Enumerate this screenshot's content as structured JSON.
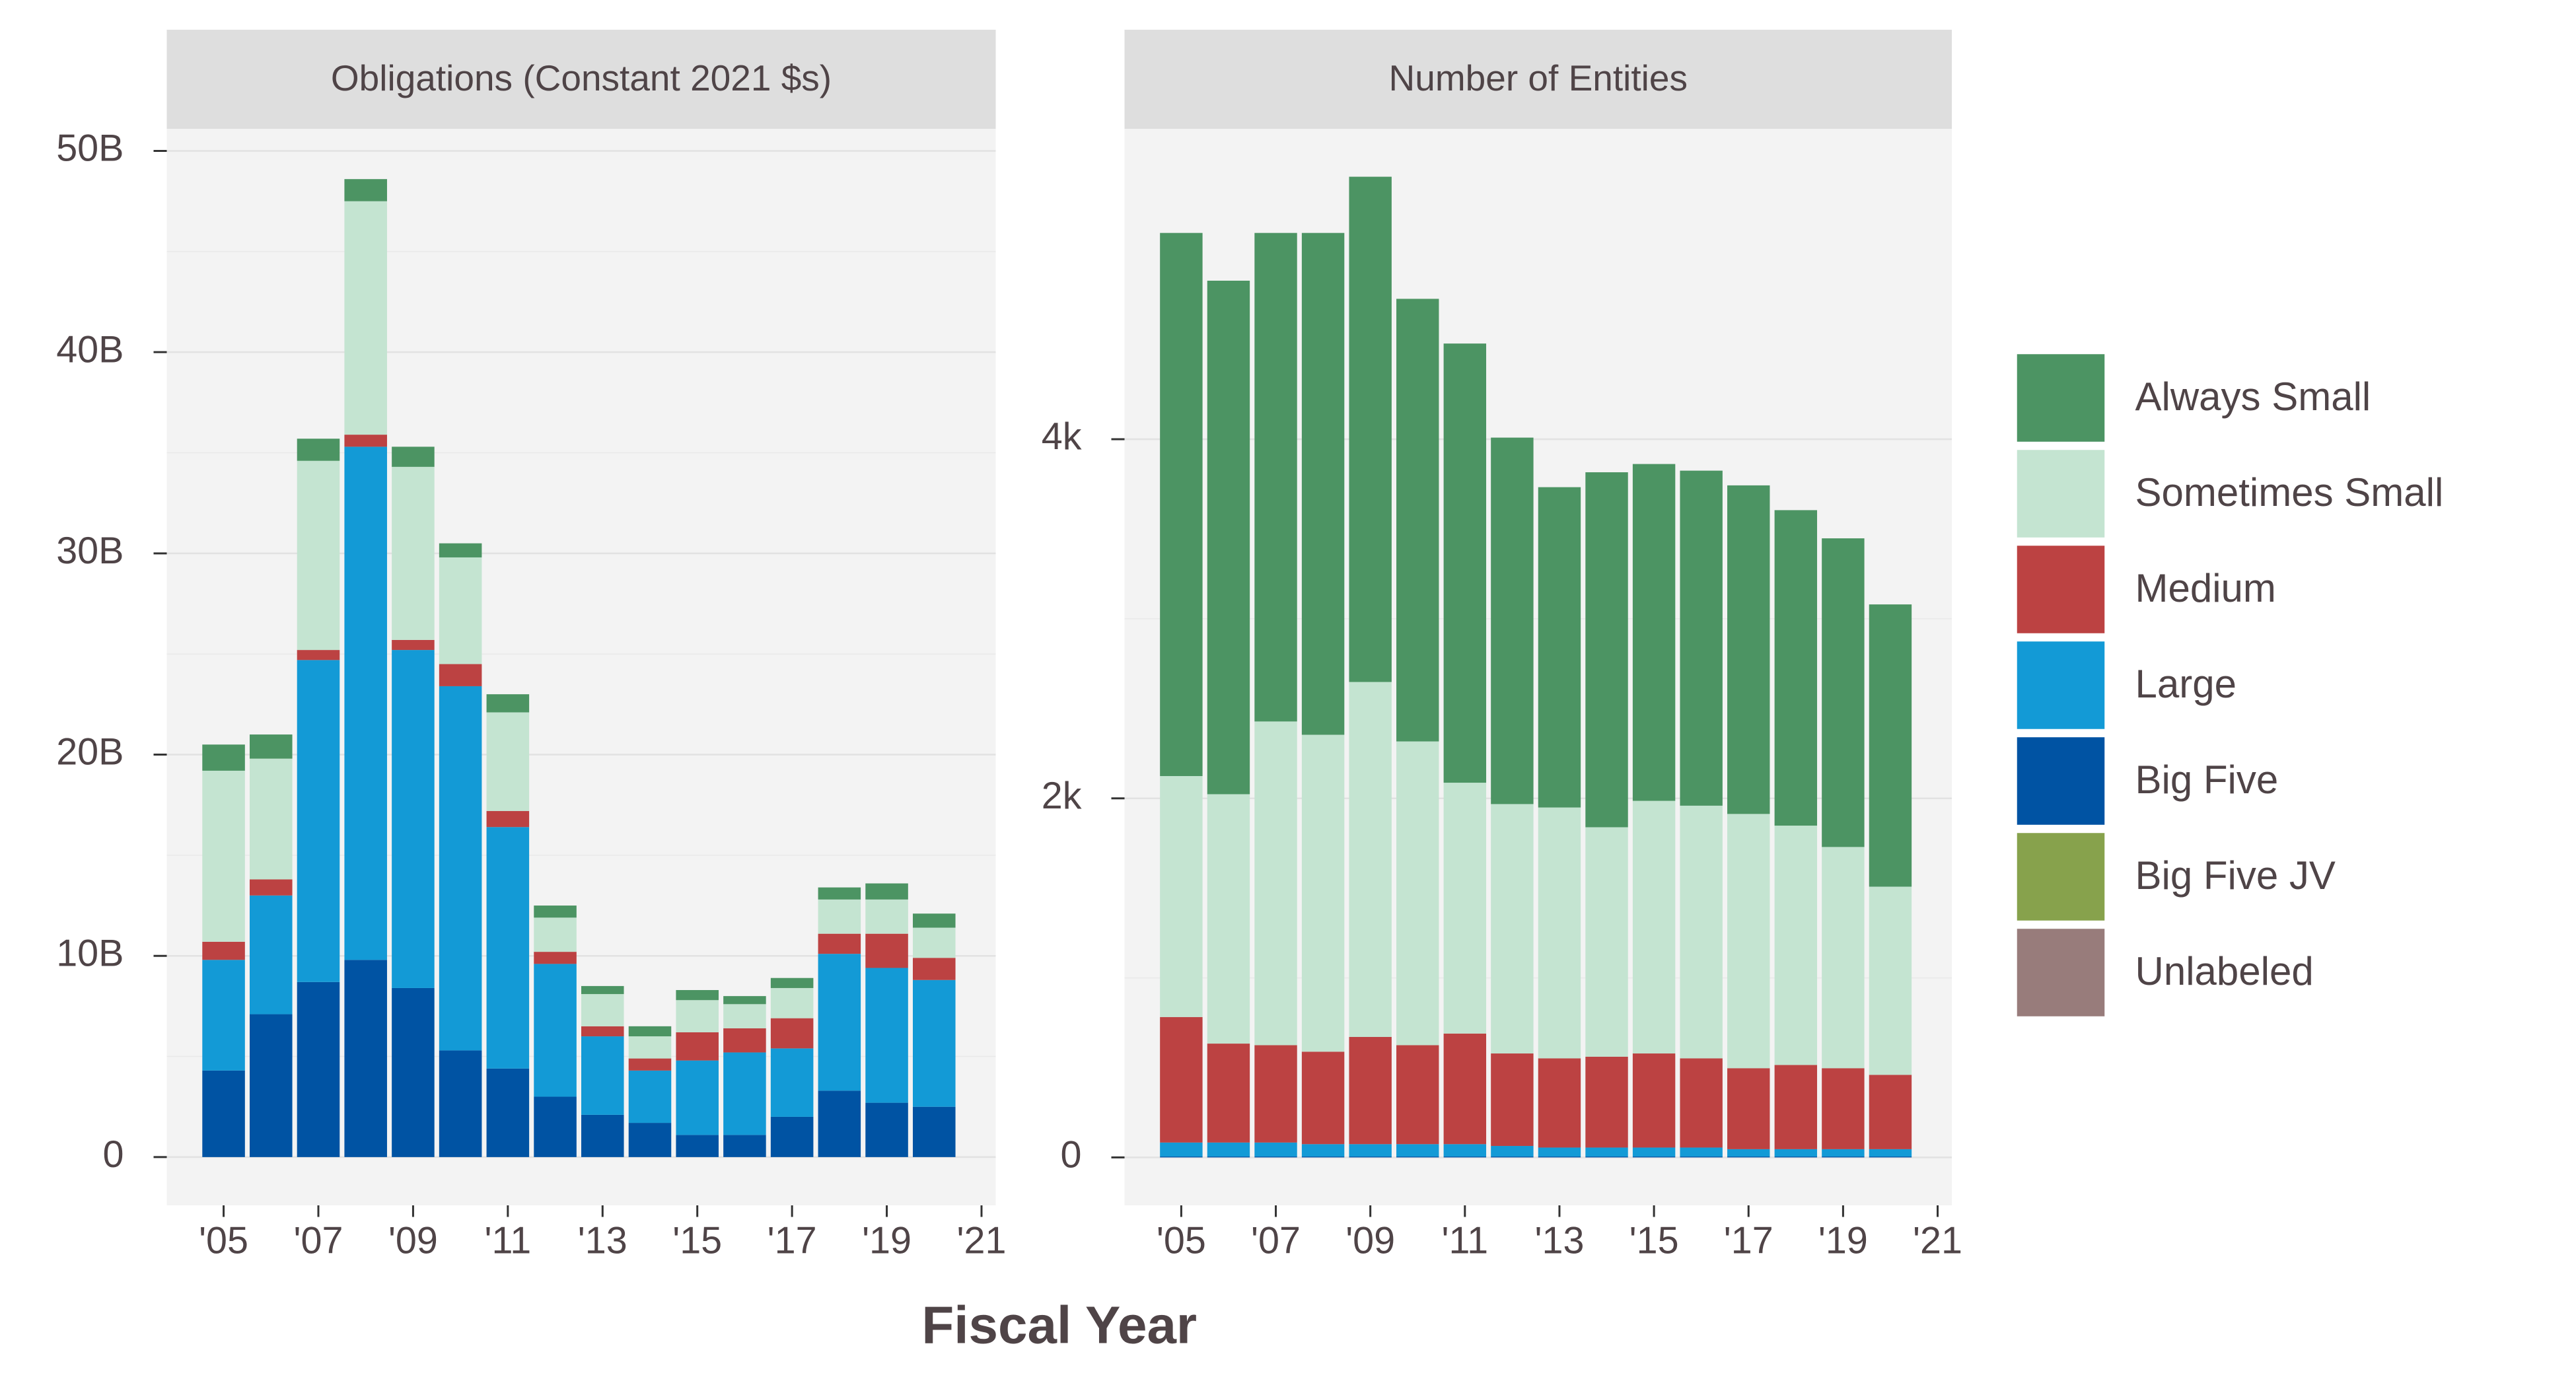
{
  "chart_data": [
    {
      "type": "stacked_bar",
      "title": "Obligations (Constant 2021 $s)",
      "xlabel": "Fiscal Year",
      "legend": "right",
      "grid": true,
      "x": [
        2005,
        2006,
        2007,
        2008,
        2009,
        2010,
        2011,
        2012,
        2013,
        2014,
        2015,
        2016,
        2017,
        2018,
        2019,
        2020
      ],
      "xlim": [
        2003.8,
        2021.3
      ],
      "xticks": [
        {
          "value": 2005,
          "label": "'05"
        },
        {
          "value": 2007,
          "label": "'07"
        },
        {
          "value": 2009,
          "label": "'09"
        },
        {
          "value": 2011,
          "label": "'11"
        },
        {
          "value": 2013,
          "label": "'13"
        },
        {
          "value": 2015,
          "label": "'15"
        },
        {
          "value": 2017,
          "label": "'17"
        },
        {
          "value": 2019,
          "label": "'19"
        },
        {
          "value": 2021,
          "label": "'21"
        }
      ],
      "ylim": [
        -2.4,
        51.1
      ],
      "yticks": [
        0,
        {
          "value": 10,
          "label": "10B"
        },
        {
          "value": 20,
          "label": "20B"
        },
        {
          "value": 30,
          "label": "30B"
        },
        {
          "value": 40,
          "label": "40B"
        },
        {
          "value": 50,
          "label": "50B"
        }
      ],
      "series": [
        {
          "name": "Always Small",
          "color": "#4c9463",
          "values": [
            1.3,
            1.2,
            1.1,
            1.1,
            1.0,
            0.7,
            0.9,
            0.6,
            0.4,
            0.5,
            0.5,
            0.4,
            0.5,
            0.6,
            0.8,
            0.7
          ]
        },
        {
          "name": "Sometimes Small",
          "color": "#c4e4d1",
          "values": [
            8.5,
            6.0,
            9.4,
            11.6,
            8.6,
            5.3,
            4.9,
            1.7,
            1.6,
            1.1,
            1.6,
            1.2,
            1.5,
            1.7,
            1.7,
            1.5
          ]
        },
        {
          "name": "Medium",
          "color": "#bc4242",
          "values": [
            0.9,
            0.8,
            0.5,
            0.6,
            0.5,
            1.1,
            0.8,
            0.6,
            0.5,
            0.6,
            1.4,
            1.2,
            1.5,
            1.0,
            1.7,
            1.1
          ]
        },
        {
          "name": "Large",
          "color": "#139ad6",
          "values": [
            5.5,
            5.9,
            16.0,
            25.5,
            16.8,
            18.1,
            12.0,
            6.6,
            3.9,
            2.6,
            3.7,
            4.1,
            3.4,
            6.8,
            6.7,
            6.3
          ]
        },
        {
          "name": "Big Five",
          "color": "#0053a3",
          "values": [
            4.3,
            7.1,
            8.7,
            9.8,
            8.4,
            5.3,
            4.4,
            3.0,
            2.1,
            1.7,
            1.1,
            1.1,
            2.0,
            3.3,
            2.7,
            2.5
          ]
        },
        {
          "name": "Big Five JV",
          "color": "#87a24c",
          "values": [
            0,
            0,
            0,
            0,
            0,
            0,
            0,
            0,
            0,
            0,
            0,
            0,
            0,
            0,
            0,
            0
          ]
        },
        {
          "name": "Unlabeled",
          "color": "#987c7b",
          "values": [
            0,
            0,
            0,
            0,
            0,
            0,
            0,
            0,
            0,
            0,
            0,
            0,
            0,
            0,
            0,
            0
          ]
        }
      ]
    },
    {
      "type": "stacked_bar",
      "title": "Number of Entities",
      "grid": true,
      "x": [
        2005,
        2006,
        2007,
        2008,
        2009,
        2010,
        2011,
        2012,
        2013,
        2014,
        2015,
        2016,
        2017,
        2018,
        2019,
        2020
      ],
      "xlim": [
        2003.8,
        2021.3
      ],
      "xticks": [
        {
          "value": 2005,
          "label": "'05"
        },
        {
          "value": 2007,
          "label": "'07"
        },
        {
          "value": 2009,
          "label": "'09"
        },
        {
          "value": 2011,
          "label": "'11"
        },
        {
          "value": 2013,
          "label": "'13"
        },
        {
          "value": 2015,
          "label": "'15"
        },
        {
          "value": 2017,
          "label": "'17"
        },
        {
          "value": 2019,
          "label": "'19"
        },
        {
          "value": 2021,
          "label": "'21"
        }
      ],
      "ylim": [
        -267,
        5729
      ],
      "yticks": [
        0,
        {
          "value": 2000,
          "label": "2k"
        },
        {
          "value": 4000,
          "label": "4k"
        }
      ],
      "series": [
        {
          "color": "#4c9463",
          "values": [
            3025,
            2860,
            2721,
            2795,
            2814,
            2465,
            2446,
            2041,
            1784,
            1977,
            1876,
            1866,
            1830,
            1757,
            1719,
            1572
          ]
        },
        {
          "color": "#c4e4d1",
          "values": [
            1342,
            1389,
            1803,
            1765,
            1977,
            1692,
            1397,
            1389,
            1397,
            1278,
            1407,
            1407,
            1416,
            1333,
            1232,
            1048
          ]
        },
        {
          "color": "#bc4242",
          "values": [
            699,
            551,
            542,
            515,
            597,
            551,
            616,
            515,
            497,
            506,
            524,
            497,
            451,
            469,
            451,
            414
          ]
        },
        {
          "color": "#139ad6",
          "values": [
            78,
            78,
            78,
            69,
            69,
            69,
            69,
            59,
            50,
            50,
            50,
            50,
            41,
            41,
            41,
            41
          ]
        },
        {
          "color": "#0053a3",
          "values": [
            5,
            5,
            5,
            5,
            5,
            5,
            5,
            5,
            5,
            5,
            5,
            5,
            5,
            5,
            5,
            5
          ]
        },
        {
          "color": "#87a24c",
          "values": [
            0,
            0,
            0,
            0,
            0,
            0,
            0,
            0,
            0,
            0,
            0,
            0,
            0,
            0,
            0,
            0
          ]
        },
        {
          "color": "#987c7b",
          "values": [
            0,
            0,
            0,
            0,
            0,
            0,
            0,
            0,
            0,
            0,
            0,
            0,
            0,
            0,
            0,
            0
          ]
        }
      ]
    }
  ]
}
